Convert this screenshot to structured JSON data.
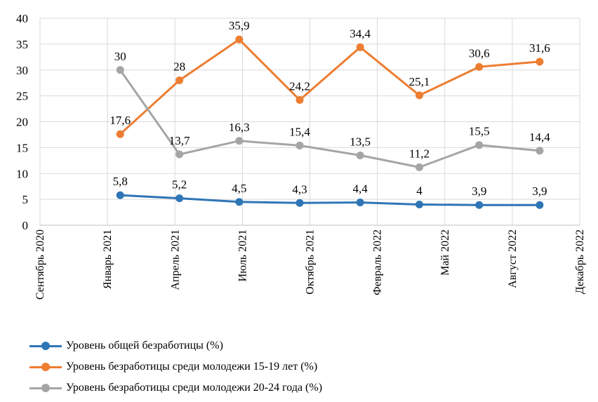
{
  "chart_data": {
    "type": "line",
    "title": "",
    "xlabel": "",
    "ylabel": "",
    "ylim": [
      0,
      40
    ],
    "yticks": [
      0,
      5,
      10,
      15,
      20,
      25,
      30,
      35,
      40
    ],
    "xticks": [
      "Сентябрь 2020",
      "Январь 2021",
      "Апрель 2021",
      "Июль 2021",
      "Октябрь 2021",
      "Февраль 2022",
      "Май 2022",
      "Август 2022",
      "Декабрь 2022"
    ],
    "point_dates": [
      "2021-01-01",
      "2021-04-01",
      "2021-07-01",
      "2021-10-01",
      "2022-01-01",
      "2022-04-01",
      "2022-07-01",
      "2022-10-01"
    ],
    "series": [
      {
        "name": "Уровень общей безработицы (%)",
        "color": "#2E75B6",
        "values": [
          5.8,
          5.2,
          4.5,
          4.3,
          4.4,
          4,
          3.9,
          3.9
        ],
        "labels": [
          "5,8",
          "5,2",
          "4,5",
          "4,3",
          "4,4",
          "4",
          "3,9",
          "3,9"
        ]
      },
      {
        "name": "Уровень безработицы среди молодежи 15-19 лет (%)",
        "color": "#ED7D31",
        "values": [
          17.6,
          28,
          35.9,
          24.2,
          34.4,
          25.1,
          30.6,
          31.6
        ],
        "labels": [
          "17,6",
          "28",
          "35,9",
          "24,2",
          "34,4",
          "25,1",
          "30,6",
          "31,6"
        ]
      },
      {
        "name": "Уровень безработицы среди молодежи 20-24 года (%)",
        "color": "#A5A5A5",
        "values": [
          30,
          13.7,
          16.3,
          15.4,
          13.5,
          11.2,
          15.5,
          14.4
        ],
        "labels": [
          "30",
          "13,7",
          "16,3",
          "15,4",
          "13,5",
          "11,2",
          "15,5",
          "14,4"
        ]
      }
    ],
    "grid": true,
    "legend": "bottom-left"
  }
}
